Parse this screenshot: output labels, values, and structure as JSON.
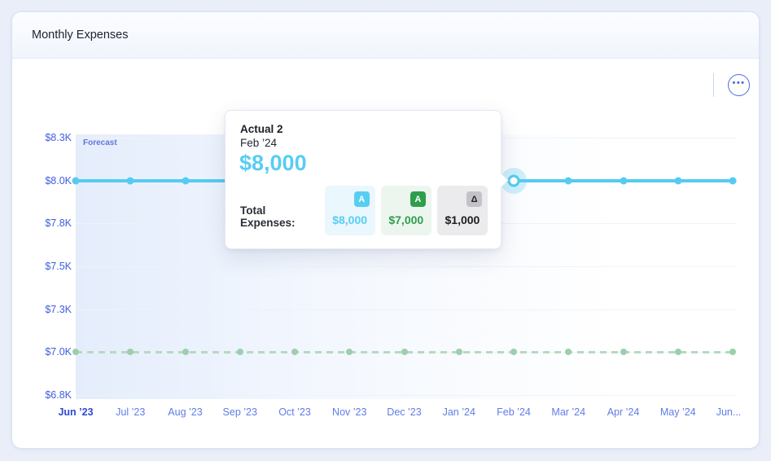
{
  "window": {
    "title": "Monthly Expenses"
  },
  "toolbar": {
    "more_options_icon": "ellipsis-circle",
    "more_options_glyph": "•••"
  },
  "chart_data": {
    "type": "line",
    "title": "Monthly Expenses",
    "forecast_label": "Forecast",
    "grid": "horizontal",
    "legend_position": "none",
    "ylim": [
      6750,
      8250
    ],
    "x_labels": [
      "Jun ’23",
      "Jul ’23",
      "Aug ’23",
      "Sep ’23",
      "Oct ’23",
      "Nov ’23",
      "Dec ’23",
      "Jan ’24",
      "Feb ’24",
      "Mar ’24",
      "Apr ’24",
      "May ’24",
      "Jun..."
    ],
    "y_ticks": [
      {
        "label": "$8.3K",
        "value": 8250
      },
      {
        "label": "$8.0K",
        "value": 8000
      },
      {
        "label": "$7.8K",
        "value": 7750
      },
      {
        "label": "$7.5K",
        "value": 7500
      },
      {
        "label": "$7.3K",
        "value": 7250
      },
      {
        "label": "$7.0K",
        "value": 7000
      },
      {
        "label": "$6.8K",
        "value": 6750
      }
    ],
    "series": [
      {
        "name": "Actual 2",
        "color": "#55cbf1",
        "marker_color": "#55cbf1",
        "line_style": "solid",
        "values": [
          8000,
          8000,
          8000,
          8000,
          8000,
          8000,
          8000,
          8000,
          8000,
          8000,
          8000,
          8000,
          8000
        ]
      },
      {
        "name": "Actual",
        "color": "#b5dabf",
        "marker_color": "#9bcfad",
        "line_style": "dashed",
        "values": [
          7000,
          7000,
          7000,
          7000,
          7000,
          7000,
          7000,
          7000,
          7000,
          7000,
          7000,
          7000,
          7000
        ]
      }
    ],
    "highlight": {
      "series": "Actual 2",
      "x_label": "Feb ’24",
      "value": 8000
    }
  },
  "tooltip": {
    "title": "Actual 2",
    "subtitle": "Feb ’24",
    "value": "$8,000",
    "row_label": "Total Expenses:",
    "entries": [
      {
        "badge": "A",
        "badge_color": "#57cdf3",
        "badge_text_color": "#ffffff",
        "box_bg": "#eaf7fd",
        "value": "$8,000",
        "value_color": "#57cdf3"
      },
      {
        "badge": "A",
        "badge_color": "#2f9e4c",
        "badge_text_color": "#ffffff",
        "box_bg": "#edf5ef",
        "value": "$7,000",
        "value_color": "#2f9e4c"
      },
      {
        "badge": "Δ",
        "badge_color": "#c3c3c7",
        "badge_text_color": "#26262a",
        "box_bg": "#ebebed",
        "value": "$1,000",
        "value_color": "#1d1d21"
      }
    ]
  }
}
